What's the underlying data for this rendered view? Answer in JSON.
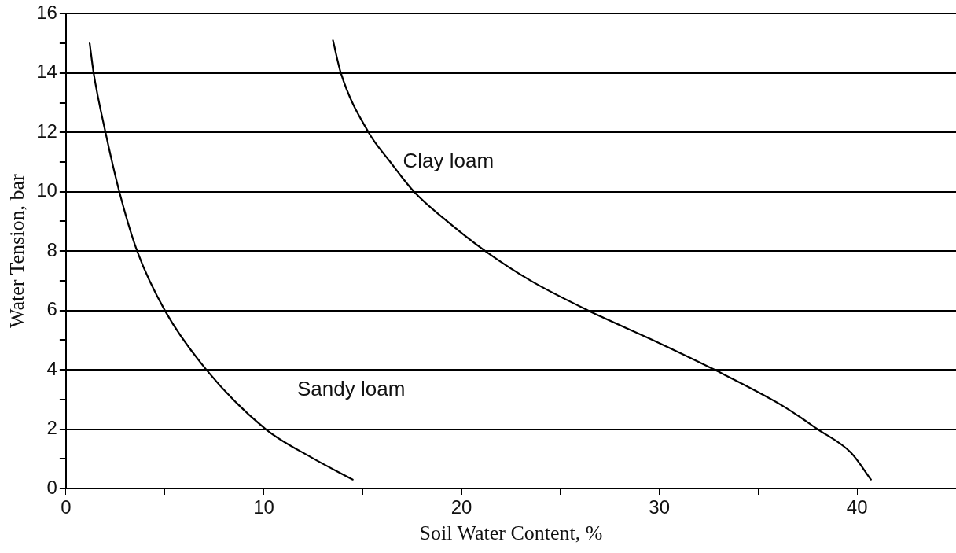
{
  "chart_data": {
    "type": "line",
    "xlabel": "Soil Water Content, %",
    "ylabel": "Water Tension, bar",
    "xlim": [
      0,
      45
    ],
    "xticks": [
      0,
      {
        "value": 5,
        "label": null
      },
      10,
      {
        "value": 15,
        "label": null
      },
      20,
      {
        "value": 25,
        "label": null
      },
      30,
      {
        "value": 35,
        "label": null
      },
      40
    ],
    "ylim": [
      0,
      16
    ],
    "yticks": [
      0,
      {
        "value": 1,
        "label": null
      },
      2,
      {
        "value": 3,
        "label": null
      },
      4,
      {
        "value": 5,
        "label": null
      },
      6,
      {
        "value": 7,
        "label": null
      },
      8,
      {
        "value": 9,
        "label": null
      },
      10,
      {
        "value": 11,
        "label": null
      },
      12,
      {
        "value": 13,
        "label": null
      },
      14,
      {
        "value": 15,
        "label": null
      },
      16
    ],
    "grid": "y",
    "marker": "none",
    "line_style": "solid",
    "series": [
      {
        "name": "Sandy loam",
        "color": "#000000",
        "x": [
          1.2,
          1.4,
          2.0,
          2.7,
          3.6,
          5.0,
          7.1,
          10.1,
          12.4,
          14.5
        ],
        "values": [
          15.0,
          14,
          12,
          10,
          8,
          6,
          4,
          2,
          1.05,
          0.3
        ]
      },
      {
        "name": "Clay loam",
        "color": "#000000",
        "x": [
          13.5,
          13.9,
          15.3,
          16.4,
          17.6,
          19.1,
          21.2,
          23.5,
          26.4,
          30.0,
          32.8,
          36.2,
          38.0,
          39.7,
          40.7
        ],
        "values": [
          15.1,
          14,
          12,
          11,
          10,
          9.1,
          8,
          7,
          6,
          4.9,
          4,
          2.8,
          2,
          1.2,
          0.3
        ]
      }
    ]
  }
}
